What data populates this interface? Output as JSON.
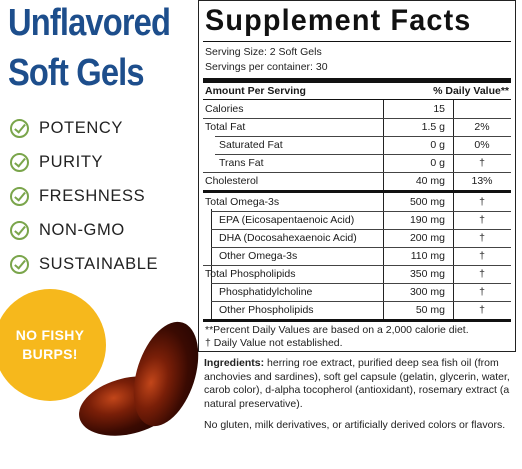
{
  "promo": {
    "title_line1": "Unflavored",
    "title_line2": "Soft Gels",
    "claims": [
      "POTENCY",
      "PURITY",
      "FRESHNESS",
      "NON-GMO",
      "SUSTAINABLE"
    ],
    "badge_line1": "NO FISHY",
    "badge_line2": "BURPS!"
  },
  "facts": {
    "title": "Supplement Facts",
    "serving_size": "Serving Size: 2 Soft Gels",
    "servings_per_container": "Servings per container: 30",
    "header_amount": "Amount Per Serving",
    "header_dv": "% Daily Value**",
    "rows": [
      {
        "name": "Calories",
        "amount": "15",
        "dv": ""
      },
      {
        "name": "Total Fat",
        "amount": "1.5 g",
        "dv": "2%"
      },
      {
        "name": "Saturated Fat",
        "amount": "0 g",
        "dv": "0%"
      },
      {
        "name": "Trans Fat",
        "amount": "0 g",
        "dv": "†"
      },
      {
        "name": "Cholesterol",
        "amount": "40 mg",
        "dv": "13%"
      },
      {
        "name": "Total Omega-3s",
        "amount": "500 mg",
        "dv": "†"
      },
      {
        "name": "EPA (Eicosapentaenoic Acid)",
        "amount": "190 mg",
        "dv": "†"
      },
      {
        "name": "DHA (Docosahexaenoic Acid)",
        "amount": "200 mg",
        "dv": "†"
      },
      {
        "name": "Other Omega-3s",
        "amount": "110 mg",
        "dv": "†"
      },
      {
        "name": "Total Phospholipids",
        "amount": "350 mg",
        "dv": "†"
      },
      {
        "name": "Phosphatidylcholine",
        "amount": "300 mg",
        "dv": "†"
      },
      {
        "name": "Other Phospholipids",
        "amount": "50 mg",
        "dv": "†"
      }
    ],
    "footnote1": "**Percent Daily Values are based on a 2,000 calorie diet.",
    "footnote2": "†  Daily Value not established."
  },
  "ingredients": {
    "label": "Ingredients:",
    "text": " herring roe extract, purified deep sea fish oil (from anchovies and sardines), soft gel capsule (gelatin, glycerin, water, carob color), d-alpha tocopherol (antioxidant), rosemary extract (a natural preservative).",
    "free_from": "No gluten, milk derivatives, or artificially derived colors or flavors."
  }
}
